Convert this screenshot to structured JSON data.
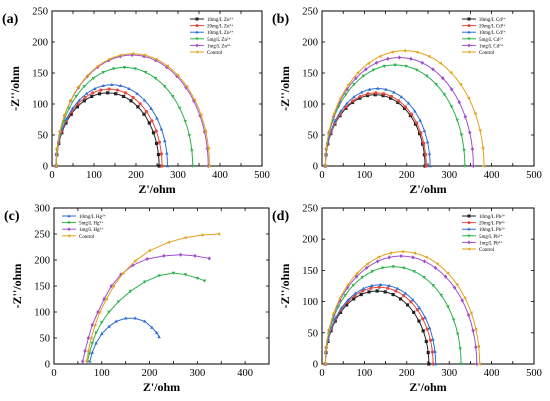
{
  "figure": {
    "panels": [
      {
        "type": "line",
        "panel_label": "(a)",
        "xlabel": "Z'/ohm",
        "ylabel": "-Z''/ohm",
        "xlim": [
          0,
          500
        ],
        "ylim": [
          0,
          250
        ],
        "xticks": [
          0,
          50,
          100,
          150,
          200,
          250,
          300,
          350,
          400,
          450,
          500
        ],
        "yticks": [
          0,
          50,
          100,
          150,
          200,
          250
        ],
        "legend_position": "top-right",
        "series": [
          {
            "name": "10mg/L Zn²⁺",
            "color": "#222222",
            "marker": "square",
            "x0": 10,
            "x1": 255,
            "peak": 118
          },
          {
            "name": "20mg/L Zn²⁺",
            "color": "#e8473f",
            "marker": "circle",
            "x0": 10,
            "x1": 262,
            "peak": 124
          },
          {
            "name": "10mg/L Zn²⁺",
            "color": "#2f6fd6",
            "marker": "triangle",
            "x0": 10,
            "x1": 275,
            "peak": 131
          },
          {
            "name": "5mg/L Zn²⁺",
            "color": "#2bb24c",
            "marker": "triangle-down",
            "x0": 10,
            "x1": 335,
            "peak": 159
          },
          {
            "name": "1mg/L Zn²⁺",
            "color": "#a04fd0",
            "marker": "diamond",
            "x0": 10,
            "x1": 372,
            "peak": 179
          },
          {
            "name": "Control",
            "color": "#e3a21a",
            "marker": "triangle-left",
            "x0": 10,
            "x1": 375,
            "peak": 181
          }
        ]
      },
      {
        "type": "line",
        "panel_label": "(b)",
        "xlabel": "Z'/ohm",
        "ylabel": "-Z''/ohm",
        "xlim": [
          0,
          500
        ],
        "ylim": [
          0,
          250
        ],
        "xticks": [
          0,
          50,
          100,
          150,
          200,
          250,
          300,
          350,
          400,
          450,
          500
        ],
        "yticks": [
          0,
          50,
          100,
          150,
          200,
          250
        ],
        "legend_position": "top-right",
        "series": [
          {
            "name": "30mg/L Cd²⁺",
            "color": "#222222",
            "marker": "square",
            "x0": 8,
            "x1": 243,
            "peak": 115
          },
          {
            "name": "20mg/L Cd²⁺",
            "color": "#e8473f",
            "marker": "circle",
            "x0": 8,
            "x1": 246,
            "peak": 118
          },
          {
            "name": "10mg/L Cd²⁺",
            "color": "#2f6fd6",
            "marker": "triangle",
            "x0": 8,
            "x1": 255,
            "peak": 125
          },
          {
            "name": "5mg/L Cd²⁺",
            "color": "#2bb24c",
            "marker": "triangle-down",
            "x0": 8,
            "x1": 337,
            "peak": 163
          },
          {
            "name": "1mg/L Cd²⁺",
            "color": "#a04fd0",
            "marker": "diamond",
            "x0": 8,
            "x1": 357,
            "peak": 175
          },
          {
            "name": "Control",
            "color": "#e3a21a",
            "marker": "triangle-left",
            "x0": 8,
            "x1": 382,
            "peak": 186
          }
        ]
      },
      {
        "type": "line",
        "panel_label": "(c)",
        "xlabel": "Z'/ohm",
        "ylabel": "-Z''/ohm",
        "xlim": [
          0,
          450
        ],
        "ylim": [
          0,
          300
        ],
        "xticks": [
          0,
          50,
          100,
          150,
          200,
          250,
          300,
          350,
          400,
          450
        ],
        "yticks": [
          0,
          50,
          100,
          150,
          200,
          250,
          300
        ],
        "legend_position": "top-left",
        "series": [
          {
            "name": "10mg/L Hg²⁺",
            "color": "#2f6fd6",
            "marker": "triangle",
            "points": [
              [
                75,
                5
              ],
              [
                80,
                22
              ],
              [
                88,
                40
              ],
              [
                100,
                58
              ],
              [
                115,
                72
              ],
              [
                130,
                82
              ],
              [
                150,
                88
              ],
              [
                170,
                88
              ],
              [
                190,
                82
              ],
              [
                205,
                70
              ],
              [
                215,
                60
              ],
              [
                220,
                52
              ]
            ]
          },
          {
            "name": "5mg/L Hg²⁺",
            "color": "#2bb24c",
            "marker": "triangle-down",
            "points": [
              [
                70,
                5
              ],
              [
                74,
                20
              ],
              [
                80,
                40
              ],
              [
                88,
                60
              ],
              [
                100,
                80
              ],
              [
                115,
                100
              ],
              [
                135,
                120
              ],
              [
                160,
                140
              ],
              [
                190,
                158
              ],
              [
                220,
                170
              ],
              [
                250,
                175
              ],
              [
                275,
                172
              ],
              [
                300,
                165
              ],
              [
                315,
                160
              ]
            ]
          },
          {
            "name": "1mg/L Hg²⁺",
            "color": "#a04fd0",
            "marker": "diamond",
            "points": [
              [
                60,
                5
              ],
              [
                65,
                25
              ],
              [
                72,
                50
              ],
              [
                80,
                75
              ],
              [
                92,
                100
              ],
              [
                105,
                125
              ],
              [
                120,
                150
              ],
              [
                140,
                172
              ],
              [
                165,
                190
              ],
              [
                195,
                202
              ],
              [
                230,
                208
              ],
              [
                265,
                210
              ],
              [
                295,
                208
              ],
              [
                325,
                203
              ]
            ]
          },
          {
            "name": "Control",
            "color": "#e3a21a",
            "marker": "triangle-left",
            "points": [
              [
                68,
                5
              ],
              [
                72,
                25
              ],
              [
                78,
                50
              ],
              [
                86,
                75
              ],
              [
                96,
                100
              ],
              [
                110,
                125
              ],
              [
                125,
                150
              ],
              [
                145,
                175
              ],
              [
                170,
                198
              ],
              [
                200,
                218
              ],
              [
                240,
                234
              ],
              [
                275,
                243
              ],
              [
                310,
                248
              ],
              [
                345,
                250
              ]
            ]
          }
        ]
      },
      {
        "type": "line",
        "panel_label": "(d)",
        "xlabel": "Z'/ohm",
        "ylabel": "-Z''/ohm",
        "xlim": [
          0,
          500
        ],
        "ylim": [
          0,
          250
        ],
        "xticks": [
          0,
          50,
          100,
          150,
          200,
          250,
          300,
          350,
          400,
          450,
          500
        ],
        "yticks": [
          0,
          50,
          100,
          150,
          200,
          250
        ],
        "legend_position": "top-right",
        "series": [
          {
            "name": "10mg/L Pb²⁺",
            "color": "#222222",
            "marker": "square",
            "x0": 8,
            "x1": 252,
            "peak": 117
          },
          {
            "name": "20mg/L Pb²⁺",
            "color": "#e8473f",
            "marker": "circle",
            "x0": 8,
            "x1": 262,
            "peak": 123
          },
          {
            "name": "10mg/L Pb²⁺",
            "color": "#2f6fd6",
            "marker": "triangle",
            "x0": 8,
            "x1": 268,
            "peak": 127
          },
          {
            "name": "5mg/L Pb²⁺",
            "color": "#2bb24c",
            "marker": "triangle-down",
            "x0": 8,
            "x1": 328,
            "peak": 156
          },
          {
            "name": "1mg/L Pb²⁺",
            "color": "#a04fd0",
            "marker": "diamond",
            "x0": 8,
            "x1": 365,
            "peak": 173
          },
          {
            "name": "Control",
            "color": "#e3a21a",
            "marker": "triangle-left",
            "x0": 8,
            "x1": 372,
            "peak": 180
          }
        ]
      }
    ]
  },
  "chart_data": [
    {
      "type": "line",
      "title": "",
      "panel_label": "(a)",
      "xlabel": "Z'/ohm",
      "ylabel": "-Z''/ohm",
      "xlim": [
        0,
        500
      ],
      "ylim": [
        0,
        250
      ],
      "grid": false,
      "legend": "top-right",
      "series": [
        {
          "name": "10mg/L Zn²⁺",
          "x": [
            10,
            255
          ],
          "peak_y": 118
        },
        {
          "name": "20mg/L Zn²⁺",
          "x": [
            10,
            262
          ],
          "peak_y": 124
        },
        {
          "name": "10mg/L Zn²⁺",
          "x": [
            10,
            275
          ],
          "peak_y": 131
        },
        {
          "name": "5mg/L Zn²⁺",
          "x": [
            10,
            335
          ],
          "peak_y": 159
        },
        {
          "name": "1mg/L Zn²⁺",
          "x": [
            10,
            372
          ],
          "peak_y": 179
        },
        {
          "name": "Control",
          "x": [
            10,
            375
          ],
          "peak_y": 181
        }
      ]
    },
    {
      "type": "line",
      "title": "",
      "panel_label": "(b)",
      "xlabel": "Z'/ohm",
      "ylabel": "-Z''/ohm",
      "xlim": [
        0,
        500
      ],
      "ylim": [
        0,
        250
      ],
      "grid": false,
      "legend": "top-right",
      "series": [
        {
          "name": "30mg/L Cd²⁺",
          "x": [
            8,
            243
          ],
          "peak_y": 115
        },
        {
          "name": "20mg/L Cd²⁺",
          "x": [
            8,
            246
          ],
          "peak_y": 118
        },
        {
          "name": "10mg/L Cd²⁺",
          "x": [
            8,
            255
          ],
          "peak_y": 125
        },
        {
          "name": "5mg/L Cd²⁺",
          "x": [
            8,
            337
          ],
          "peak_y": 163
        },
        {
          "name": "1mg/L Cd²⁺",
          "x": [
            8,
            357
          ],
          "peak_y": 175
        },
        {
          "name": "Control",
          "x": [
            8,
            382
          ],
          "peak_y": 186
        }
      ]
    },
    {
      "type": "line",
      "title": "",
      "panel_label": "(c)",
      "xlabel": "Z'/ohm",
      "ylabel": "-Z''/ohm",
      "xlim": [
        0,
        450
      ],
      "ylim": [
        0,
        300
      ],
      "grid": false,
      "legend": "top-left",
      "series": [
        {
          "name": "10mg/L Hg²⁺",
          "end_point": [
            220,
            52
          ],
          "peak_y": 88
        },
        {
          "name": "5mg/L Hg²⁺",
          "end_point": [
            315,
            160
          ],
          "peak_y": 175
        },
        {
          "name": "1mg/L Hg²⁺",
          "end_point": [
            325,
            203
          ],
          "peak_y": 210
        },
        {
          "name": "Control",
          "end_point": [
            345,
            250
          ],
          "peak_y": 250
        }
      ]
    },
    {
      "type": "line",
      "title": "",
      "panel_label": "(d)",
      "xlabel": "Z'/ohm",
      "ylabel": "-Z''/ohm",
      "xlim": [
        0,
        500
      ],
      "ylim": [
        0,
        250
      ],
      "grid": false,
      "legend": "top-right",
      "series": [
        {
          "name": "10mg/L Pb²⁺",
          "x": [
            8,
            252
          ],
          "peak_y": 117
        },
        {
          "name": "20mg/L Pb²⁺",
          "x": [
            8,
            262
          ],
          "peak_y": 123
        },
        {
          "name": "10mg/L Pb²⁺",
          "x": [
            8,
            268
          ],
          "peak_y": 127
        },
        {
          "name": "5mg/L Pb²⁺",
          "x": [
            8,
            328
          ],
          "peak_y": 156
        },
        {
          "name": "1mg/L Pb²⁺",
          "x": [
            8,
            365
          ],
          "peak_y": 173
        },
        {
          "name": "Control",
          "x": [
            8,
            372
          ],
          "peak_y": 180
        }
      ]
    }
  ]
}
